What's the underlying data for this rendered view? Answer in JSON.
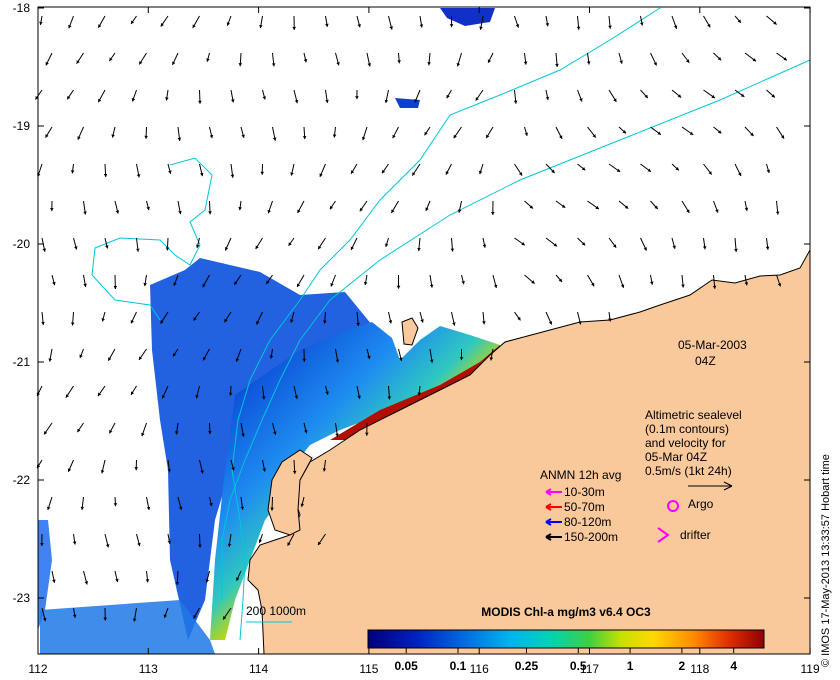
{
  "map": {
    "lon_ticks": [
      "112",
      "113",
      "114",
      "115",
      "116",
      "117",
      "118",
      "119"
    ],
    "lat_ticks": [
      "-18",
      "-19",
      "-20",
      "-21",
      "-22",
      "-23"
    ]
  },
  "annotations": {
    "date": "05-Mar-2003",
    "time": "04Z",
    "altimetry_lines": [
      "Altimetric sealevel",
      "(0.1m contours)",
      "and velocity for",
      "05-Mar 04Z",
      "0.5m/s (1kt 24h)"
    ],
    "anmn_title": "ANMN 12h avg",
    "depth_legend": [
      {
        "label": "10-30m",
        "color": "#ff00ff"
      },
      {
        "label": "50-70m",
        "color": "#ff0000"
      },
      {
        "label": "80-120m",
        "color": "#0000ff"
      },
      {
        "label": "150-200m",
        "color": "#000000"
      }
    ],
    "argo_label": "Argo",
    "argo_color": "#ff00ff",
    "drifter_label": "drifter",
    "drifter_color": "#ff00ff",
    "bathymetry_label": "200  1000m",
    "bathymetry_color": "#00c8d8",
    "credit": "© IMOS 17-May-2013 13:33:57 Hobart time"
  },
  "colorbar": {
    "title": "MODIS Chl-a mg/m3 v6.4 OC3",
    "tick_labels": [
      "0.05",
      "0.1",
      "0.25",
      "0.5",
      "1",
      "2",
      "4"
    ],
    "tick_values": [
      0.05,
      0.1,
      0.25,
      0.5,
      1,
      2,
      4
    ],
    "range": [
      0.03,
      6
    ]
  },
  "colors": {
    "land": "#f9c89b",
    "coast": "#000000",
    "contour": "#00c8d8"
  }
}
